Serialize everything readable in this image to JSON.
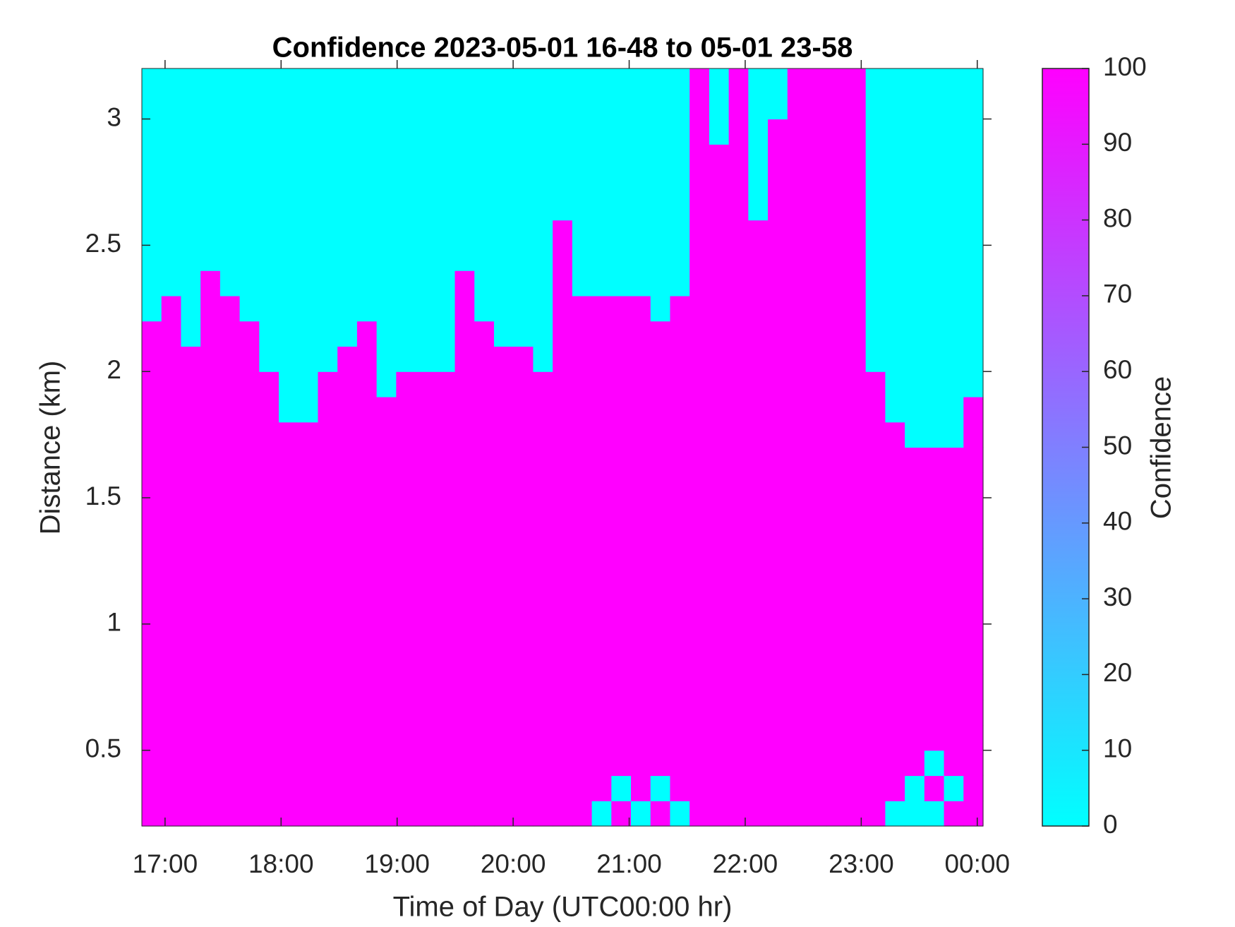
{
  "chart_data": {
    "type": "heatmap",
    "title": "Confidence 2023-05-01 16-48 to 05-01 23-58",
    "x_label": "Time of Day (UTC00:00 hr)",
    "y_label": "Distance (km)",
    "colorbar_label": "Confidence",
    "xlim": [
      16.8,
      24.05
    ],
    "ylim": [
      0.2,
      3.2
    ],
    "clim": [
      0,
      100
    ],
    "colormap": [
      "#00ffff",
      "#ff00ff"
    ],
    "xticks": [
      {
        "value": 17,
        "label": "17:00"
      },
      {
        "value": 18,
        "label": "18:00"
      },
      {
        "value": 19,
        "label": "19:00"
      },
      {
        "value": 20,
        "label": "20:00"
      },
      {
        "value": 21,
        "label": "21:00"
      },
      {
        "value": 22,
        "label": "22:00"
      },
      {
        "value": 23,
        "label": "23:00"
      },
      {
        "value": 24,
        "label": "00:00"
      }
    ],
    "yticks": [
      0.5,
      1,
      1.5,
      2,
      2.5,
      3
    ],
    "cticks": [
      0,
      10,
      20,
      30,
      40,
      50,
      60,
      70,
      80,
      90,
      100
    ],
    "z": [
      [
        100,
        100,
        100,
        100,
        100,
        100,
        100,
        100,
        100,
        100,
        100,
        100,
        100,
        100,
        100,
        100,
        100,
        100,
        100,
        100,
        100,
        100,
        100,
        0,
        100,
        0,
        100,
        0,
        100,
        100,
        100,
        100,
        100,
        100,
        100,
        100,
        100,
        100,
        0,
        0,
        0,
        100,
        100
      ],
      [
        100,
        100,
        100,
        100,
        100,
        100,
        100,
        100,
        100,
        100,
        100,
        100,
        100,
        100,
        100,
        100,
        100,
        100,
        100,
        100,
        100,
        100,
        100,
        100,
        0,
        100,
        0,
        100,
        100,
        100,
        100,
        100,
        100,
        100,
        100,
        100,
        100,
        100,
        100,
        0,
        100,
        0,
        100
      ],
      [
        100,
        100,
        100,
        100,
        100,
        100,
        100,
        100,
        100,
        100,
        100,
        100,
        100,
        100,
        100,
        100,
        100,
        100,
        100,
        100,
        100,
        100,
        100,
        100,
        100,
        100,
        100,
        100,
        100,
        100,
        100,
        100,
        100,
        100,
        100,
        100,
        100,
        100,
        100,
        100,
        0,
        100,
        100
      ],
      [
        100,
        100,
        100,
        100,
        100,
        100,
        100,
        100,
        100,
        100,
        100,
        100,
        100,
        100,
        100,
        100,
        100,
        100,
        100,
        100,
        100,
        100,
        100,
        100,
        100,
        100,
        100,
        100,
        100,
        100,
        100,
        100,
        100,
        100,
        100,
        100,
        100,
        100,
        100,
        100,
        100,
        100,
        100
      ],
      [
        100,
        100,
        100,
        100,
        100,
        100,
        100,
        100,
        100,
        100,
        100,
        100,
        100,
        100,
        100,
        100,
        100,
        100,
        100,
        100,
        100,
        100,
        100,
        100,
        100,
        100,
        100,
        100,
        100,
        100,
        100,
        100,
        100,
        100,
        100,
        100,
        100,
        100,
        100,
        100,
        100,
        100,
        100
      ],
      [
        100,
        100,
        100,
        100,
        100,
        100,
        100,
        100,
        100,
        100,
        100,
        100,
        100,
        100,
        100,
        100,
        100,
        100,
        100,
        100,
        100,
        100,
        100,
        100,
        100,
        100,
        100,
        100,
        100,
        100,
        100,
        100,
        100,
        100,
        100,
        100,
        100,
        100,
        100,
        100,
        100,
        100,
        100
      ],
      [
        100,
        100,
        100,
        100,
        100,
        100,
        100,
        100,
        100,
        100,
        100,
        100,
        100,
        100,
        100,
        100,
        100,
        100,
        100,
        100,
        100,
        100,
        100,
        100,
        100,
        100,
        100,
        100,
        100,
        100,
        100,
        100,
        100,
        100,
        100,
        100,
        100,
        100,
        100,
        100,
        100,
        100,
        100
      ],
      [
        100,
        100,
        100,
        100,
        100,
        100,
        100,
        100,
        100,
        100,
        100,
        100,
        100,
        100,
        100,
        100,
        100,
        100,
        100,
        100,
        100,
        100,
        100,
        100,
        100,
        100,
        100,
        100,
        100,
        100,
        100,
        100,
        100,
        100,
        100,
        100,
        100,
        100,
        100,
        100,
        100,
        100,
        100
      ],
      [
        100,
        100,
        100,
        100,
        100,
        100,
        100,
        100,
        100,
        100,
        100,
        100,
        100,
        100,
        100,
        100,
        100,
        100,
        100,
        100,
        100,
        100,
        100,
        100,
        100,
        100,
        100,
        100,
        100,
        100,
        100,
        100,
        100,
        100,
        100,
        100,
        100,
        100,
        100,
        100,
        100,
        100,
        100
      ],
      [
        100,
        100,
        100,
        100,
        100,
        100,
        100,
        100,
        100,
        100,
        100,
        100,
        100,
        100,
        100,
        100,
        100,
        100,
        100,
        100,
        100,
        100,
        100,
        100,
        100,
        100,
        100,
        100,
        100,
        100,
        100,
        100,
        100,
        100,
        100,
        100,
        100,
        100,
        100,
        100,
        100,
        100,
        100
      ],
      [
        100,
        100,
        100,
        100,
        100,
        100,
        100,
        100,
        100,
        100,
        100,
        100,
        100,
        100,
        100,
        100,
        100,
        100,
        100,
        100,
        100,
        100,
        100,
        100,
        100,
        100,
        100,
        100,
        100,
        100,
        100,
        100,
        100,
        100,
        100,
        100,
        100,
        100,
        100,
        100,
        100,
        100,
        100
      ],
      [
        100,
        100,
        100,
        100,
        100,
        100,
        100,
        100,
        100,
        100,
        100,
        100,
        100,
        100,
        100,
        100,
        100,
        100,
        100,
        100,
        100,
        100,
        100,
        100,
        100,
        100,
        100,
        100,
        100,
        100,
        100,
        100,
        100,
        100,
        100,
        100,
        100,
        100,
        100,
        100,
        100,
        100,
        100
      ],
      [
        100,
        100,
        100,
        100,
        100,
        100,
        100,
        100,
        100,
        100,
        100,
        100,
        100,
        100,
        100,
        100,
        100,
        100,
        100,
        100,
        100,
        100,
        100,
        100,
        100,
        100,
        100,
        100,
        100,
        100,
        100,
        100,
        100,
        100,
        100,
        100,
        100,
        100,
        100,
        100,
        100,
        100,
        100
      ],
      [
        100,
        100,
        100,
        100,
        100,
        100,
        100,
        100,
        100,
        100,
        100,
        100,
        100,
        100,
        100,
        100,
        100,
        100,
        100,
        100,
        100,
        100,
        100,
        100,
        100,
        100,
        100,
        100,
        100,
        100,
        100,
        100,
        100,
        100,
        100,
        100,
        100,
        100,
        100,
        100,
        100,
        100,
        100
      ],
      [
        100,
        100,
        100,
        100,
        100,
        100,
        100,
        100,
        100,
        100,
        100,
        100,
        100,
        100,
        100,
        100,
        100,
        100,
        100,
        100,
        100,
        100,
        100,
        100,
        100,
        100,
        100,
        100,
        100,
        100,
        100,
        100,
        100,
        100,
        100,
        100,
        100,
        100,
        100,
        100,
        100,
        100,
        100
      ],
      [
        100,
        100,
        100,
        100,
        100,
        100,
        100,
        100,
        100,
        100,
        100,
        100,
        100,
        100,
        100,
        100,
        100,
        100,
        100,
        100,
        100,
        100,
        100,
        100,
        100,
        100,
        100,
        100,
        100,
        100,
        100,
        100,
        100,
        100,
        100,
        100,
        100,
        100,
        100,
        0,
        0,
        0,
        100
      ],
      [
        100,
        100,
        100,
        100,
        100,
        100,
        100,
        0,
        0,
        100,
        100,
        100,
        100,
        100,
        100,
        100,
        100,
        100,
        100,
        100,
        100,
        100,
        100,
        100,
        100,
        100,
        100,
        100,
        100,
        100,
        100,
        100,
        100,
        100,
        100,
        100,
        100,
        100,
        0,
        0,
        0,
        0,
        100
      ],
      [
        100,
        100,
        100,
        100,
        100,
        100,
        100,
        0,
        0,
        100,
        100,
        100,
        0,
        100,
        100,
        100,
        100,
        100,
        100,
        100,
        100,
        100,
        100,
        100,
        100,
        100,
        100,
        100,
        100,
        100,
        100,
        100,
        100,
        100,
        100,
        100,
        100,
        100,
        0,
        0,
        0,
        0,
        0
      ],
      [
        100,
        100,
        100,
        100,
        100,
        100,
        0,
        0,
        0,
        0,
        100,
        100,
        0,
        0,
        0,
        0,
        100,
        100,
        100,
        100,
        0,
        100,
        100,
        100,
        100,
        100,
        100,
        100,
        100,
        100,
        100,
        100,
        100,
        100,
        100,
        100,
        100,
        0,
        0,
        0,
        0,
        0,
        0
      ],
      [
        100,
        100,
        0,
        100,
        100,
        100,
        0,
        0,
        0,
        0,
        0,
        100,
        0,
        0,
        0,
        0,
        100,
        100,
        0,
        0,
        0,
        100,
        100,
        100,
        100,
        100,
        100,
        100,
        100,
        100,
        100,
        100,
        100,
        100,
        100,
        100,
        100,
        0,
        0,
        0,
        0,
        0,
        0
      ],
      [
        0,
        100,
        0,
        100,
        100,
        0,
        0,
        0,
        0,
        0,
        0,
        0,
        0,
        0,
        0,
        0,
        100,
        0,
        0,
        0,
        0,
        100,
        100,
        100,
        100,
        100,
        0,
        100,
        100,
        100,
        100,
        100,
        100,
        100,
        100,
        100,
        100,
        0,
        0,
        0,
        0,
        0,
        0
      ],
      [
        0,
        0,
        0,
        100,
        0,
        0,
        0,
        0,
        0,
        0,
        0,
        0,
        0,
        0,
        0,
        0,
        100,
        0,
        0,
        0,
        0,
        100,
        0,
        0,
        0,
        0,
        0,
        0,
        100,
        100,
        100,
        100,
        100,
        100,
        100,
        100,
        100,
        0,
        0,
        0,
        0,
        0,
        0
      ],
      [
        0,
        0,
        0,
        0,
        0,
        0,
        0,
        0,
        0,
        0,
        0,
        0,
        0,
        0,
        0,
        0,
        0,
        0,
        0,
        0,
        0,
        100,
        0,
        0,
        0,
        0,
        0,
        0,
        100,
        100,
        100,
        100,
        100,
        100,
        100,
        100,
        100,
        0,
        0,
        0,
        0,
        0,
        0
      ],
      [
        0,
        0,
        0,
        0,
        0,
        0,
        0,
        0,
        0,
        0,
        0,
        0,
        0,
        0,
        0,
        0,
        0,
        0,
        0,
        0,
        0,
        100,
        0,
        0,
        0,
        0,
        0,
        0,
        100,
        100,
        100,
        100,
        100,
        100,
        100,
        100,
        100,
        0,
        0,
        0,
        0,
        0,
        0
      ],
      [
        0,
        0,
        0,
        0,
        0,
        0,
        0,
        0,
        0,
        0,
        0,
        0,
        0,
        0,
        0,
        0,
        0,
        0,
        0,
        0,
        0,
        0,
        0,
        0,
        0,
        0,
        0,
        0,
        100,
        100,
        100,
        0,
        100,
        100,
        100,
        100,
        100,
        0,
        0,
        0,
        0,
        0,
        0
      ],
      [
        0,
        0,
        0,
        0,
        0,
        0,
        0,
        0,
        0,
        0,
        0,
        0,
        0,
        0,
        0,
        0,
        0,
        0,
        0,
        0,
        0,
        0,
        0,
        0,
        0,
        0,
        0,
        0,
        100,
        100,
        100,
        0,
        100,
        100,
        100,
        100,
        100,
        0,
        0,
        0,
        0,
        0,
        0
      ],
      [
        0,
        0,
        0,
        0,
        0,
        0,
        0,
        0,
        0,
        0,
        0,
        0,
        0,
        0,
        0,
        0,
        0,
        0,
        0,
        0,
        0,
        0,
        0,
        0,
        0,
        0,
        0,
        0,
        100,
        100,
        100,
        0,
        100,
        100,
        100,
        100,
        100,
        0,
        0,
        0,
        0,
        0,
        0
      ],
      [
        0,
        0,
        0,
        0,
        0,
        0,
        0,
        0,
        0,
        0,
        0,
        0,
        0,
        0,
        0,
        0,
        0,
        0,
        0,
        0,
        0,
        0,
        0,
        0,
        0,
        0,
        0,
        0,
        100,
        0,
        100,
        0,
        100,
        100,
        100,
        100,
        100,
        0,
        0,
        0,
        0,
        0,
        0
      ],
      [
        0,
        0,
        0,
        0,
        0,
        0,
        0,
        0,
        0,
        0,
        0,
        0,
        0,
        0,
        0,
        0,
        0,
        0,
        0,
        0,
        0,
        0,
        0,
        0,
        0,
        0,
        0,
        0,
        100,
        0,
        100,
        0,
        0,
        100,
        100,
        100,
        100,
        0,
        0,
        0,
        0,
        0,
        0
      ],
      [
        0,
        0,
        0,
        0,
        0,
        0,
        0,
        0,
        0,
        0,
        0,
        0,
        0,
        0,
        0,
        0,
        0,
        0,
        0,
        0,
        0,
        0,
        0,
        0,
        0,
        0,
        0,
        0,
        100,
        0,
        100,
        0,
        0,
        100,
        100,
        100,
        100,
        0,
        0,
        0,
        0,
        0,
        0
      ]
    ]
  }
}
